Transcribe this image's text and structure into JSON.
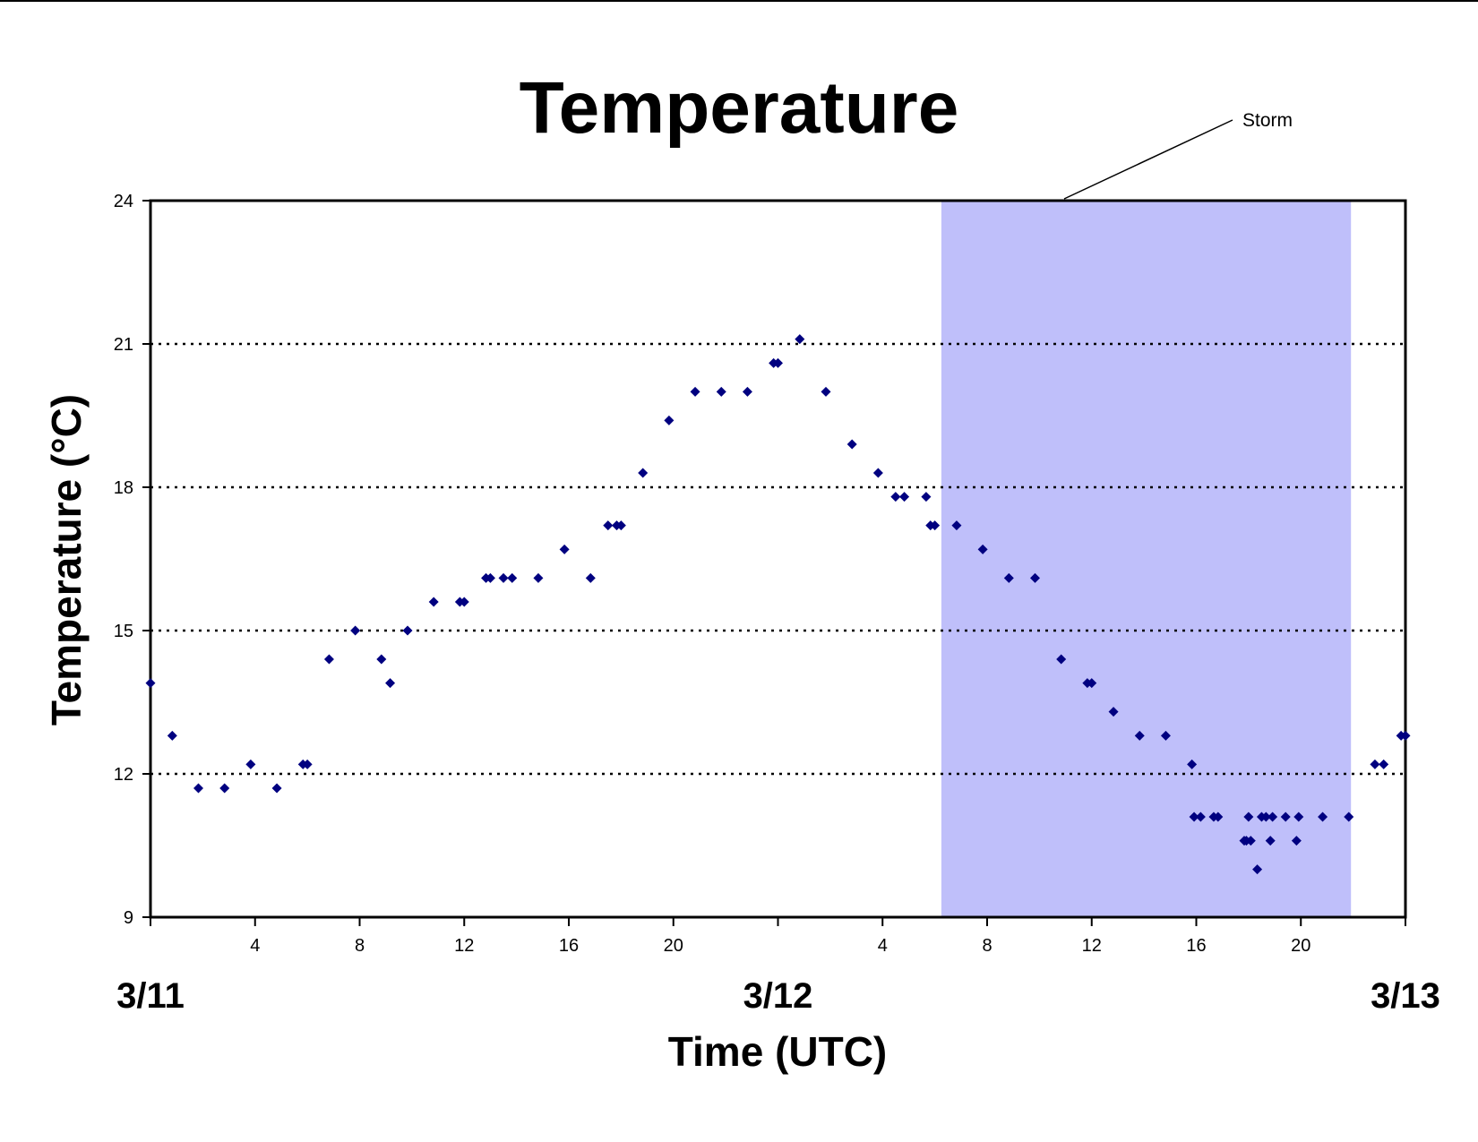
{
  "chart_data": {
    "type": "scatter",
    "title": "Temperature",
    "xlabel": "Time (UTC)",
    "ylabel": "Temperature (°C)",
    "ylim": [
      9,
      24
    ],
    "yticks": [
      9,
      12,
      15,
      18,
      21,
      24
    ],
    "xlim": [
      "3/11 00:00",
      "3/13 00:00"
    ],
    "hour_tick_labels": [
      "4",
      "8",
      "12",
      "16",
      "20",
      "4",
      "8",
      "12",
      "16",
      "20"
    ],
    "date_labels": [
      "3/11",
      "3/12",
      "3/13"
    ],
    "grid": "dotted horizontal at 12, 15, 18, 21",
    "marker_color": "#000080",
    "storm_fill_color": "#bfbffa",
    "annotation": {
      "text": "Storm",
      "shaded_range": [
        "3/12 06:15",
        "3/12 21:55"
      ]
    },
    "series": [
      {
        "x": [
          "3/11 00:00",
          "3/11 00:50",
          "3/11 01:50",
          "3/11 02:50",
          "3/11 03:50",
          "3/11 04:50",
          "3/11 05:50",
          "3/11 06:00",
          "3/11 06:50",
          "3/11 07:50",
          "3/11 08:50",
          "3/11 09:10",
          "3/11 09:50",
          "3/11 10:50",
          "3/11 11:50",
          "3/11 12:00",
          "3/11 12:50",
          "3/11 13:00",
          "3/11 13:30",
          "3/11 13:50",
          "3/11 14:50",
          "3/11 15:50",
          "3/11 16:50",
          "3/11 17:30",
          "3/11 17:50",
          "3/11 18:00",
          "3/11 18:50",
          "3/11 19:50",
          "3/11 20:50",
          "3/11 21:50",
          "3/11 22:50",
          "3/11 23:50",
          "3/12 00:00",
          "3/12 00:50",
          "3/12 01:50",
          "3/12 02:50",
          "3/12 03:50",
          "3/12 04:30",
          "3/12 04:50",
          "3/12 05:40",
          "3/12 05:50",
          "3/12 06:00",
          "3/12 06:50",
          "3/12 07:50",
          "3/12 08:50",
          "3/12 09:50",
          "3/12 10:50",
          "3/12 11:50",
          "3/12 12:00",
          "3/12 12:50",
          "3/12 13:50",
          "3/12 14:50",
          "3/12 15:50",
          "3/12 15:55",
          "3/12 16:10",
          "3/12 16:40",
          "3/12 16:50",
          "3/12 17:50",
          "3/12 17:55",
          "3/12 18:00",
          "3/12 18:05",
          "3/12 18:20",
          "3/12 18:30",
          "3/12 18:40",
          "3/12 18:50",
          "3/12 18:55",
          "3/12 19:25",
          "3/12 19:50",
          "3/12 19:55",
          "3/12 20:50",
          "3/12 21:50",
          "3/12 22:50",
          "3/12 23:10",
          "3/12 23:50",
          "3/13 00:00"
        ],
        "y": [
          13.9,
          12.8,
          11.7,
          11.7,
          12.2,
          11.7,
          12.2,
          12.2,
          14.4,
          15.0,
          14.4,
          13.9,
          15.0,
          15.6,
          15.6,
          15.6,
          16.1,
          16.1,
          16.1,
          16.1,
          16.1,
          16.7,
          16.1,
          17.2,
          17.2,
          17.2,
          18.3,
          19.4,
          20.0,
          20.0,
          20.0,
          20.6,
          20.6,
          21.1,
          20.0,
          18.9,
          18.3,
          17.8,
          17.8,
          17.8,
          17.2,
          17.2,
          17.2,
          16.7,
          16.1,
          16.1,
          14.4,
          13.9,
          13.9,
          13.3,
          12.8,
          12.8,
          12.2,
          11.1,
          11.1,
          11.1,
          11.1,
          10.6,
          10.6,
          11.1,
          10.6,
          10.0,
          11.1,
          11.1,
          10.6,
          11.1,
          11.1,
          10.6,
          11.1,
          11.1,
          11.1,
          12.2,
          12.2,
          12.8,
          12.8
        ]
      }
    ]
  }
}
